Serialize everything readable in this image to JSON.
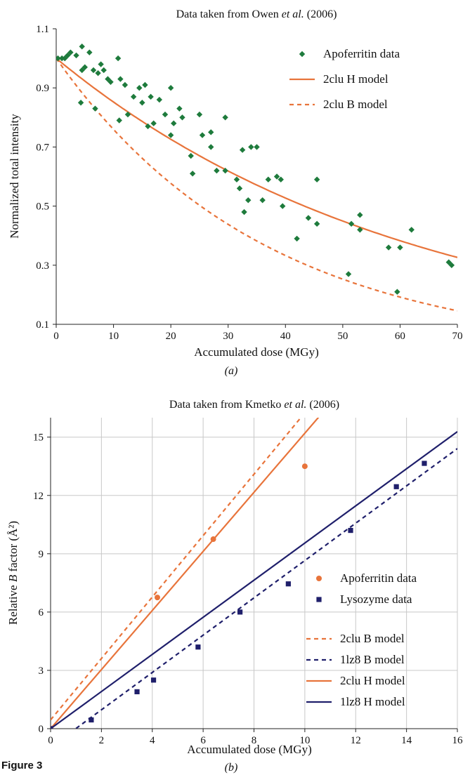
{
  "figure_label": "Figure 3",
  "colors": {
    "orange": "#e8743b",
    "green": "#1e7b3c",
    "navy": "#1f1f6b",
    "grid": "#c8c8c8"
  },
  "chart_data": [
    {
      "type": "scatter",
      "title_prefix": "Data taken from Owen ",
      "title_italic": "et al.",
      "title_suffix": " (2006)",
      "subfig": "(a)",
      "xlabel": "Accumulated dose (MGy)",
      "ylabel": "Normalized total intensity",
      "xlim": [
        0,
        70
      ],
      "ylim": [
        0.1,
        1.1
      ],
      "xticks": [
        "0",
        "10",
        "20",
        "30",
        "40",
        "50",
        "60",
        "70"
      ],
      "yticks": [
        "0.1",
        "0.3",
        "0.5",
        "0.7",
        "0.9",
        "1.1"
      ],
      "grid": false,
      "legend_position": "top-right",
      "series": [
        {
          "name": "Apoferritin data",
          "kind": "scatter",
          "marker": "diamond",
          "color": "#1e7b3c",
          "points": [
            [
              0.3,
              1.0
            ],
            [
              1.0,
              1.0
            ],
            [
              1.5,
              1.0
            ],
            [
              2.0,
              1.01
            ],
            [
              2.5,
              1.02
            ],
            [
              3.5,
              1.01
            ],
            [
              4.5,
              1.04
            ],
            [
              5.8,
              1.02
            ],
            [
              4.5,
              0.96
            ],
            [
              5.0,
              0.97
            ],
            [
              6.5,
              0.96
            ],
            [
              7.3,
              0.95
            ],
            [
              7.8,
              0.98
            ],
            [
              8.3,
              0.96
            ],
            [
              9.0,
              0.93
            ],
            [
              9.5,
              0.92
            ],
            [
              10.8,
              1.0
            ],
            [
              11.2,
              0.93
            ],
            [
              12.0,
              0.91
            ],
            [
              13.5,
              0.87
            ],
            [
              14.5,
              0.9
            ],
            [
              15.0,
              0.85
            ],
            [
              15.5,
              0.91
            ],
            [
              16.5,
              0.87
            ],
            [
              17.0,
              0.78
            ],
            [
              18.0,
              0.86
            ],
            [
              19.0,
              0.81
            ],
            [
              20.0,
              0.9
            ],
            [
              20.5,
              0.78
            ],
            [
              21.5,
              0.83
            ],
            [
              22.0,
              0.8
            ],
            [
              4.3,
              0.85
            ],
            [
              6.8,
              0.83
            ],
            [
              11.0,
              0.79
            ],
            [
              12.5,
              0.81
            ],
            [
              16.0,
              0.77
            ],
            [
              20.0,
              0.74
            ],
            [
              23.5,
              0.67
            ],
            [
              23.8,
              0.61
            ],
            [
              25.0,
              0.81
            ],
            [
              25.5,
              0.74
            ],
            [
              27.0,
              0.75
            ],
            [
              27.0,
              0.7
            ],
            [
              28.0,
              0.62
            ],
            [
              29.5,
              0.8
            ],
            [
              29.5,
              0.62
            ],
            [
              31.5,
              0.59
            ],
            [
              32.0,
              0.56
            ],
            [
              32.5,
              0.69
            ],
            [
              32.8,
              0.48
            ],
            [
              33.5,
              0.52
            ],
            [
              34.0,
              0.7
            ],
            [
              35.0,
              0.7
            ],
            [
              36.0,
              0.52
            ],
            [
              37.0,
              0.59
            ],
            [
              38.5,
              0.6
            ],
            [
              39.2,
              0.59
            ],
            [
              39.5,
              0.5
            ],
            [
              42.0,
              0.39
            ],
            [
              44.0,
              0.46
            ],
            [
              45.5,
              0.59
            ],
            [
              45.5,
              0.44
            ],
            [
              51.0,
              0.27
            ],
            [
              51.5,
              0.44
            ],
            [
              53.0,
              0.47
            ],
            [
              53.0,
              0.42
            ],
            [
              58.0,
              0.36
            ],
            [
              59.5,
              0.21
            ],
            [
              60.0,
              0.36
            ],
            [
              62.0,
              0.42
            ],
            [
              68.5,
              0.31
            ],
            [
              69.0,
              0.3
            ]
          ]
        },
        {
          "name": "2clu H model",
          "kind": "line",
          "style": "solid",
          "color": "#e8743b",
          "model": "exp",
          "a": 1.0,
          "k": 0.016,
          "xmax": 70
        },
        {
          "name": "2clu B model",
          "kind": "line",
          "style": "dashed",
          "color": "#e8743b",
          "model": "exp",
          "a": 1.0,
          "k": 0.0275,
          "xmax": 70
        }
      ]
    },
    {
      "type": "scatter",
      "title_prefix": "Data taken from Kmetko ",
      "title_italic": "et al.",
      "title_suffix": " (2006)",
      "subfig": "(b)",
      "xlabel": "Accumulated dose (MGy)",
      "ylabel_prefix": "Relative ",
      "ylabel_italic": "B",
      "ylabel_suffix": " factor (Å²)",
      "xlim": [
        0,
        16
      ],
      "ylim": [
        0,
        16
      ],
      "xticks": [
        "0",
        "2",
        "4",
        "6",
        "8",
        "10",
        "12",
        "14",
        "16"
      ],
      "yticks": [
        "0",
        "3",
        "6",
        "9",
        "12",
        "15"
      ],
      "grid": true,
      "legend_position": "bottom-right",
      "series": [
        {
          "name": "Apoferritin data",
          "kind": "scatter",
          "marker": "circle",
          "color": "#e8743b",
          "points": [
            [
              0,
              0
            ],
            [
              4.2,
              6.75
            ],
            [
              6.4,
              9.75
            ],
            [
              10.0,
              13.5
            ]
          ]
        },
        {
          "name": "Lysozyme data",
          "kind": "scatter",
          "marker": "square",
          "color": "#1f1f6b",
          "points": [
            [
              0,
              0
            ],
            [
              1.6,
              0.45
            ],
            [
              3.4,
              1.9
            ],
            [
              4.05,
              2.5
            ],
            [
              5.8,
              4.2
            ],
            [
              7.45,
              6.0
            ],
            [
              9.35,
              7.45
            ],
            [
              11.8,
              10.2
            ],
            [
              13.6,
              12.45
            ],
            [
              14.7,
              13.65
            ]
          ]
        },
        {
          "name": "2clu B model",
          "kind": "line",
          "style": "dashed",
          "color": "#e8743b",
          "model": "linear",
          "m": 1.58,
          "b": 0.45,
          "xmin": 0,
          "xmax": 16
        },
        {
          "name": "1lz8 B model",
          "kind": "line",
          "style": "dashed",
          "color": "#1f1f6b",
          "model": "linear",
          "m": 0.96,
          "b": -0.95,
          "xmin": 1.0,
          "xmax": 16
        },
        {
          "name": "2clu H model",
          "kind": "line",
          "style": "solid",
          "color": "#e8743b",
          "model": "linear",
          "m": 1.52,
          "b": 0.0,
          "xmin": 0,
          "xmax": 16
        },
        {
          "name": "1lz8 H model",
          "kind": "line",
          "style": "solid",
          "color": "#1f1f6b",
          "model": "linear",
          "m": 0.955,
          "b": 0.0,
          "xmin": 0,
          "xmax": 16
        }
      ]
    }
  ]
}
